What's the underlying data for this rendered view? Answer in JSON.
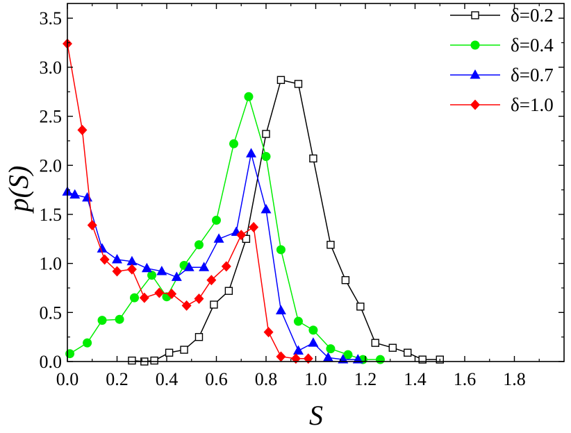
{
  "chart_data": {
    "type": "line",
    "xlabel": "S",
    "ylabel": "p(S)",
    "xlim": [
      0.0,
      2.0
    ],
    "ylim": [
      0.0,
      3.65
    ],
    "xticks": [
      "0.0",
      "0.2",
      "0.4",
      "0.6",
      "0.8",
      "1.0",
      "1.2",
      "1.4",
      "1.6",
      "1.8"
    ],
    "yticks": [
      "0.0",
      "0.5",
      "1.0",
      "1.5",
      "2.0",
      "2.5",
      "3.0",
      "3.5"
    ],
    "legend_position": "top-right",
    "grid": false,
    "series": [
      {
        "name": "δ=0.2",
        "color": "#000000",
        "marker": "open-square",
        "x": [
          0.26,
          0.31,
          0.35,
          0.41,
          0.47,
          0.53,
          0.59,
          0.65,
          0.72,
          0.8,
          0.86,
          0.93,
          0.99,
          1.06,
          1.12,
          1.18,
          1.24,
          1.31,
          1.37,
          1.43,
          1.5
        ],
        "y": [
          0.01,
          0.0,
          0.01,
          0.09,
          0.12,
          0.25,
          0.58,
          0.72,
          1.25,
          2.32,
          2.87,
          2.83,
          2.07,
          1.19,
          0.83,
          0.56,
          0.19,
          0.14,
          0.09,
          0.02,
          0.02
        ]
      },
      {
        "name": "δ=0.4",
        "color": "#00ee00",
        "marker": "filled-circle",
        "x": [
          0.01,
          0.08,
          0.14,
          0.21,
          0.27,
          0.34,
          0.4,
          0.47,
          0.53,
          0.6,
          0.67,
          0.73,
          0.8,
          0.86,
          0.93,
          0.99,
          1.06,
          1.13,
          1.19,
          1.26
        ],
        "y": [
          0.08,
          0.19,
          0.42,
          0.43,
          0.65,
          0.88,
          0.66,
          0.98,
          1.19,
          1.44,
          2.22,
          2.7,
          2.09,
          1.14,
          0.41,
          0.32,
          0.13,
          0.07,
          0.02,
          0.02
        ]
      },
      {
        "name": "δ=0.7",
        "color": "#0000ff",
        "marker": "filled-triangle",
        "x": [
          0.0,
          0.03,
          0.08,
          0.14,
          0.2,
          0.26,
          0.32,
          0.38,
          0.44,
          0.49,
          0.55,
          0.61,
          0.68,
          0.74,
          0.8,
          0.86,
          0.93,
          0.99,
          1.05,
          1.11,
          1.17
        ],
        "y": [
          1.73,
          1.7,
          1.67,
          1.15,
          1.04,
          1.02,
          0.95,
          0.92,
          0.86,
          0.96,
          0.96,
          1.25,
          1.32,
          2.12,
          1.55,
          0.52,
          0.11,
          0.19,
          0.04,
          0.02,
          0.02
        ]
      },
      {
        "name": "δ=1.0",
        "color": "#ff0000",
        "marker": "filled-diamond",
        "x": [
          0.0,
          0.06,
          0.1,
          0.15,
          0.2,
          0.26,
          0.31,
          0.37,
          0.42,
          0.48,
          0.53,
          0.58,
          0.64,
          0.7,
          0.75,
          0.81,
          0.86,
          0.92,
          0.97
        ],
        "y": [
          3.24,
          2.36,
          1.39,
          1.04,
          0.92,
          0.94,
          0.65,
          0.7,
          0.69,
          0.57,
          0.64,
          0.83,
          0.97,
          1.29,
          1.37,
          0.3,
          0.05,
          0.03,
          0.03
        ]
      }
    ]
  }
}
